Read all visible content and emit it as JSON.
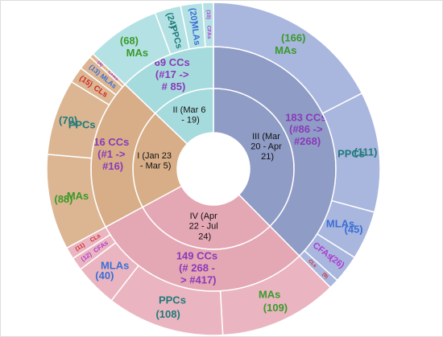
{
  "chart_data": {
    "type": "sunburst",
    "label_colors": {
      "MAs": "#3a9a2a",
      "PPCs": "#1f7a7a",
      "MLAs": "#3b6fd4",
      "CFAs": "#b03bd0",
      "CLs": "#d02a2a"
    },
    "cc_color": "#8a3ab8",
    "series": [
      {
        "name": "III (Mar 20 - Apr 21)",
        "cc_label": "183 CCs (#86 -> #268)",
        "color": "#8f9cc6",
        "outer_color": "#a9b6de",
        "categories": [
          "MAs",
          "PPCs",
          "MLAs",
          "CFAs",
          "CLs"
        ],
        "values": [
          166,
          111,
          45,
          26,
          9
        ],
        "value_labels": [
          "(166)",
          "(111)",
          "(45)",
          "(26)",
          "(9)"
        ]
      },
      {
        "name": "IV (Apr 22 - Jul 24)",
        "cc_label": "149 CCs (# 268 - > #417)",
        "color": "#e4a7b4",
        "outer_color": "#eab5c0",
        "categories": [
          "MAs",
          "PPCs",
          "MLAs",
          "CFAs",
          "CLs"
        ],
        "values": [
          109,
          108,
          40,
          12,
          11
        ],
        "value_labels": [
          "(109)",
          "(108)",
          "(40)",
          "(12)",
          "(11)"
        ]
      },
      {
        "name": "I (Jan 23 - Mar 5)",
        "cc_label": "16 CCs (#1 -> #16)",
        "color": "#d7ae88",
        "outer_color": "#dcb692",
        "categories": [
          "MAs",
          "PPCs",
          "CLs",
          "MLAs",
          "CFAs"
        ],
        "values": [
          88,
          70,
          15,
          13,
          4
        ],
        "value_labels": [
          "(88)",
          "(70)",
          "(15)",
          "(13)",
          "(4)"
        ]
      },
      {
        "name": "II (Mar 6 - 19)",
        "cc_label": "69 CCs (#17 -> # 85)",
        "color": "#a6dbde",
        "outer_color": "#b4e2e4",
        "categories": [
          "MAs",
          "PPCs",
          "MLAs",
          "CFAs"
        ],
        "values": [
          68,
          24,
          20,
          10
        ],
        "value_labels": [
          "(68)",
          "(24)",
          "(20)",
          "(10)"
        ]
      }
    ]
  }
}
